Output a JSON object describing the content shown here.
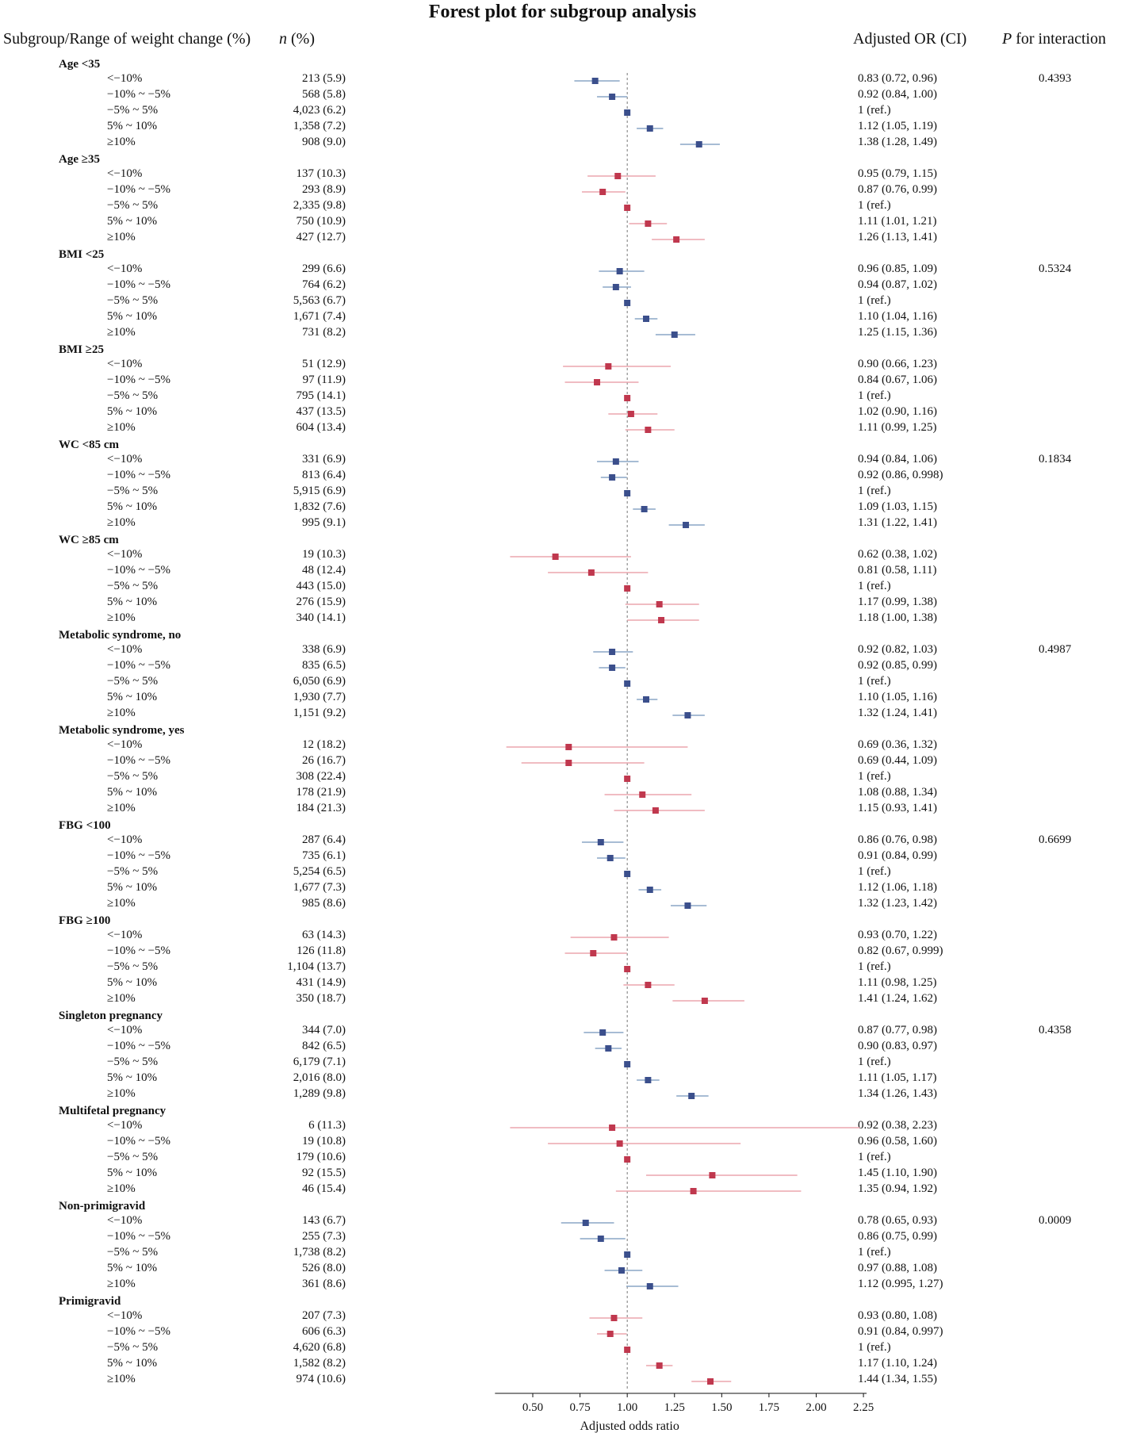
{
  "title": "Forest plot for subgroup analysis",
  "headers": {
    "subgroup": "Subgroup/Range of weight change (%)",
    "n_italic": "n",
    "n_rest": " (%)",
    "or": "Adjusted OR (CI)",
    "p_italic": "P",
    "p_rest": " for interaction"
  },
  "colors": {
    "blue": "#3b4f8c",
    "blue_ci": "#8aa6c6",
    "red": "#c0384e",
    "red_ci": "#eca5ad",
    "ref_line": "#777777"
  },
  "chart_data": {
    "type": "forest",
    "title": "Forest plot for subgroup analysis",
    "xlabel": "Adjusted odds ratio",
    "xlim": [
      0.3,
      2.25
    ],
    "xticks": [
      0.5,
      0.75,
      1.0,
      1.25,
      1.5,
      1.75,
      2.0,
      2.25
    ],
    "xtick_labels": [
      "0.50",
      "0.75",
      "1.00",
      "1.25",
      "1.50",
      "1.75",
      "2.00",
      "2.25"
    ],
    "reference_line": 1.0,
    "groups": [
      {
        "label": "Age <35",
        "color": "blue",
        "p": "0.4393",
        "rows": [
          {
            "range": "<−10%",
            "n": "213 (5.9)",
            "or_text": "0.83 (0.72, 0.96)",
            "or": 0.83,
            "lo": 0.72,
            "hi": 0.96
          },
          {
            "range": "−10% ~ −5%",
            "n": "568 (5.8)",
            "or_text": "0.92 (0.84, 1.00)",
            "or": 0.92,
            "lo": 0.84,
            "hi": 1.0
          },
          {
            "range": "−5% ~ 5%",
            "n": "4,023 (6.2)",
            "or_text": "1 (ref.)",
            "or": 1.0,
            "lo": 1.0,
            "hi": 1.0
          },
          {
            "range": "5% ~ 10%",
            "n": "1,358 (7.2)",
            "or_text": "1.12 (1.05, 1.19)",
            "or": 1.12,
            "lo": 1.05,
            "hi": 1.19
          },
          {
            "range": "≥10%",
            "n": "908 (9.0)",
            "or_text": "1.38 (1.28, 1.49)",
            "or": 1.38,
            "lo": 1.28,
            "hi": 1.49
          }
        ]
      },
      {
        "label": "Age ≥35",
        "color": "red",
        "p": "",
        "rows": [
          {
            "range": "<−10%",
            "n": "137 (10.3)",
            "or_text": "0.95 (0.79, 1.15)",
            "or": 0.95,
            "lo": 0.79,
            "hi": 1.15
          },
          {
            "range": "−10% ~ −5%",
            "n": "293 (8.9)",
            "or_text": "0.87 (0.76, 0.99)",
            "or": 0.87,
            "lo": 0.76,
            "hi": 0.99
          },
          {
            "range": "−5% ~ 5%",
            "n": "2,335 (9.8)",
            "or_text": "1 (ref.)",
            "or": 1.0,
            "lo": 1.0,
            "hi": 1.0
          },
          {
            "range": "5% ~ 10%",
            "n": "750 (10.9)",
            "or_text": "1.11 (1.01, 1.21)",
            "or": 1.11,
            "lo": 1.01,
            "hi": 1.21
          },
          {
            "range": "≥10%",
            "n": "427 (12.7)",
            "or_text": "1.26 (1.13, 1.41)",
            "or": 1.26,
            "lo": 1.13,
            "hi": 1.41
          }
        ]
      },
      {
        "label": "BMI <25",
        "color": "blue",
        "p": "0.5324",
        "rows": [
          {
            "range": "<−10%",
            "n": "299 (6.6)",
            "or_text": "0.96 (0.85, 1.09)",
            "or": 0.96,
            "lo": 0.85,
            "hi": 1.09
          },
          {
            "range": "−10% ~ −5%",
            "n": "764 (6.2)",
            "or_text": "0.94 (0.87, 1.02)",
            "or": 0.94,
            "lo": 0.87,
            "hi": 1.02
          },
          {
            "range": "−5% ~ 5%",
            "n": "5,563 (6.7)",
            "or_text": "1 (ref.)",
            "or": 1.0,
            "lo": 1.0,
            "hi": 1.0
          },
          {
            "range": "5% ~ 10%",
            "n": "1,671 (7.4)",
            "or_text": "1.10 (1.04, 1.16)",
            "or": 1.1,
            "lo": 1.04,
            "hi": 1.16
          },
          {
            "range": "≥10%",
            "n": "731 (8.2)",
            "or_text": "1.25 (1.15, 1.36)",
            "or": 1.25,
            "lo": 1.15,
            "hi": 1.36
          }
        ]
      },
      {
        "label": "BMI ≥25",
        "color": "red",
        "p": "",
        "rows": [
          {
            "range": "<−10%",
            "n": "51 (12.9)",
            "or_text": "0.90 (0.66, 1.23)",
            "or": 0.9,
            "lo": 0.66,
            "hi": 1.23
          },
          {
            "range": "−10% ~ −5%",
            "n": "97 (11.9)",
            "or_text": "0.84 (0.67, 1.06)",
            "or": 0.84,
            "lo": 0.67,
            "hi": 1.06
          },
          {
            "range": "−5% ~ 5%",
            "n": "795 (14.1)",
            "or_text": "1 (ref.)",
            "or": 1.0,
            "lo": 1.0,
            "hi": 1.0
          },
          {
            "range": "5% ~ 10%",
            "n": "437 (13.5)",
            "or_text": "1.02 (0.90, 1.16)",
            "or": 1.02,
            "lo": 0.9,
            "hi": 1.16
          },
          {
            "range": "≥10%",
            "n": "604 (13.4)",
            "or_text": "1.11 (0.99, 1.25)",
            "or": 1.11,
            "lo": 0.99,
            "hi": 1.25
          }
        ]
      },
      {
        "label": "WC <85 cm",
        "color": "blue",
        "p": "0.1834",
        "rows": [
          {
            "range": "<−10%",
            "n": "331 (6.9)",
            "or_text": "0.94 (0.84, 1.06)",
            "or": 0.94,
            "lo": 0.84,
            "hi": 1.06
          },
          {
            "range": "−10% ~ −5%",
            "n": "813 (6.4)",
            "or_text": "0.92 (0.86, 0.998)",
            "or": 0.92,
            "lo": 0.86,
            "hi": 0.998
          },
          {
            "range": "−5% ~ 5%",
            "n": "5,915 (6.9)",
            "or_text": "1 (ref.)",
            "or": 1.0,
            "lo": 1.0,
            "hi": 1.0
          },
          {
            "range": "5% ~ 10%",
            "n": "1,832 (7.6)",
            "or_text": "1.09 (1.03, 1.15)",
            "or": 1.09,
            "lo": 1.03,
            "hi": 1.15
          },
          {
            "range": "≥10%",
            "n": "995 (9.1)",
            "or_text": "1.31 (1.22, 1.41)",
            "or": 1.31,
            "lo": 1.22,
            "hi": 1.41
          }
        ]
      },
      {
        "label": "WC ≥85 cm",
        "color": "red",
        "p": "",
        "rows": [
          {
            "range": "<−10%",
            "n": "19 (10.3)",
            "or_text": "0.62 (0.38, 1.02)",
            "or": 0.62,
            "lo": 0.38,
            "hi": 1.02
          },
          {
            "range": "−10% ~ −5%",
            "n": "48 (12.4)",
            "or_text": "0.81 (0.58, 1.11)",
            "or": 0.81,
            "lo": 0.58,
            "hi": 1.11
          },
          {
            "range": "−5% ~ 5%",
            "n": "443 (15.0)",
            "or_text": "1 (ref.)",
            "or": 1.0,
            "lo": 1.0,
            "hi": 1.0
          },
          {
            "range": "5% ~ 10%",
            "n": "276 (15.9)",
            "or_text": "1.17 (0.99, 1.38)",
            "or": 1.17,
            "lo": 0.99,
            "hi": 1.38
          },
          {
            "range": "≥10%",
            "n": "340 (14.1)",
            "or_text": "1.18 (1.00, 1.38)",
            "or": 1.18,
            "lo": 1.0,
            "hi": 1.38
          }
        ]
      },
      {
        "label": "Metabolic syndrome, no",
        "color": "blue",
        "p": "0.4987",
        "rows": [
          {
            "range": "<−10%",
            "n": "338 (6.9)",
            "or_text": "0.92 (0.82, 1.03)",
            "or": 0.92,
            "lo": 0.82,
            "hi": 1.03
          },
          {
            "range": "−10% ~ −5%",
            "n": "835 (6.5)",
            "or_text": "0.92 (0.85, 0.99)",
            "or": 0.92,
            "lo": 0.85,
            "hi": 0.99
          },
          {
            "range": "−5% ~ 5%",
            "n": "6,050 (6.9)",
            "or_text": "1 (ref.)",
            "or": 1.0,
            "lo": 1.0,
            "hi": 1.0
          },
          {
            "range": "5% ~ 10%",
            "n": "1,930 (7.7)",
            "or_text": "1.10 (1.05, 1.16)",
            "or": 1.1,
            "lo": 1.05,
            "hi": 1.16
          },
          {
            "range": "≥10%",
            "n": "1,151 (9.2)",
            "or_text": "1.32 (1.24, 1.41)",
            "or": 1.32,
            "lo": 1.24,
            "hi": 1.41
          }
        ]
      },
      {
        "label": "Metabolic syndrome, yes",
        "color": "red",
        "p": "",
        "rows": [
          {
            "range": "<−10%",
            "n": "12 (18.2)",
            "or_text": "0.69 (0.36, 1.32)",
            "or": 0.69,
            "lo": 0.36,
            "hi": 1.32
          },
          {
            "range": "−10% ~ −5%",
            "n": "26 (16.7)",
            "or_text": "0.69 (0.44, 1.09)",
            "or": 0.69,
            "lo": 0.44,
            "hi": 1.09
          },
          {
            "range": "−5% ~ 5%",
            "n": "308 (22.4)",
            "or_text": "1 (ref.)",
            "or": 1.0,
            "lo": 1.0,
            "hi": 1.0
          },
          {
            "range": "5% ~ 10%",
            "n": "178 (21.9)",
            "or_text": "1.08 (0.88, 1.34)",
            "or": 1.08,
            "lo": 0.88,
            "hi": 1.34
          },
          {
            "range": "≥10%",
            "n": "184 (21.3)",
            "or_text": "1.15 (0.93, 1.41)",
            "or": 1.15,
            "lo": 0.93,
            "hi": 1.41
          }
        ]
      },
      {
        "label": "FBG <100",
        "color": "blue",
        "p": "0.6699",
        "rows": [
          {
            "range": "<−10%",
            "n": "287 (6.4)",
            "or_text": "0.86 (0.76, 0.98)",
            "or": 0.86,
            "lo": 0.76,
            "hi": 0.98
          },
          {
            "range": "−10% ~ −5%",
            "n": "735 (6.1)",
            "or_text": "0.91 (0.84, 0.99)",
            "or": 0.91,
            "lo": 0.84,
            "hi": 0.99
          },
          {
            "range": "−5% ~ 5%",
            "n": "5,254 (6.5)",
            "or_text": "1 (ref.)",
            "or": 1.0,
            "lo": 1.0,
            "hi": 1.0
          },
          {
            "range": "5% ~ 10%",
            "n": "1,677 (7.3)",
            "or_text": "1.12 (1.06, 1.18)",
            "or": 1.12,
            "lo": 1.06,
            "hi": 1.18
          },
          {
            "range": "≥10%",
            "n": "985 (8.6)",
            "or_text": "1.32 (1.23, 1.42)",
            "or": 1.32,
            "lo": 1.23,
            "hi": 1.42
          }
        ]
      },
      {
        "label": "FBG ≥100",
        "color": "red",
        "p": "",
        "rows": [
          {
            "range": "<−10%",
            "n": "63 (14.3)",
            "or_text": "0.93 (0.70, 1.22)",
            "or": 0.93,
            "lo": 0.7,
            "hi": 1.22
          },
          {
            "range": "−10% ~ −5%",
            "n": "126 (11.8)",
            "or_text": "0.82 (0.67, 0.999)",
            "or": 0.82,
            "lo": 0.67,
            "hi": 0.999
          },
          {
            "range": "−5% ~ 5%",
            "n": "1,104 (13.7)",
            "or_text": "1 (ref.)",
            "or": 1.0,
            "lo": 1.0,
            "hi": 1.0
          },
          {
            "range": "5% ~ 10%",
            "n": "431 (14.9)",
            "or_text": "1.11 (0.98, 1.25)",
            "or": 1.11,
            "lo": 0.98,
            "hi": 1.25
          },
          {
            "range": "≥10%",
            "n": "350 (18.7)",
            "or_text": "1.41 (1.24, 1.62)",
            "or": 1.41,
            "lo": 1.24,
            "hi": 1.62
          }
        ]
      },
      {
        "label": "Singleton pregnancy",
        "color": "blue",
        "p": "0.4358",
        "rows": [
          {
            "range": "<−10%",
            "n": "344 (7.0)",
            "or_text": "0.87 (0.77, 0.98)",
            "or": 0.87,
            "lo": 0.77,
            "hi": 0.98
          },
          {
            "range": "−10% ~ −5%",
            "n": "842 (6.5)",
            "or_text": "0.90 (0.83, 0.97)",
            "or": 0.9,
            "lo": 0.83,
            "hi": 0.97
          },
          {
            "range": "−5% ~ 5%",
            "n": "6,179 (7.1)",
            "or_text": "1 (ref.)",
            "or": 1.0,
            "lo": 1.0,
            "hi": 1.0
          },
          {
            "range": "5% ~ 10%",
            "n": "2,016 (8.0)",
            "or_text": "1.11 (1.05, 1.17)",
            "or": 1.11,
            "lo": 1.05,
            "hi": 1.17
          },
          {
            "range": "≥10%",
            "n": "1,289 (9.8)",
            "or_text": "1.34 (1.26, 1.43)",
            "or": 1.34,
            "lo": 1.26,
            "hi": 1.43
          }
        ]
      },
      {
        "label": "Multifetal pregnancy",
        "color": "red",
        "p": "",
        "rows": [
          {
            "range": "<−10%",
            "n": "6 (11.3)",
            "or_text": "0.92 (0.38, 2.23)",
            "or": 0.92,
            "lo": 0.38,
            "hi": 2.23
          },
          {
            "range": "−10% ~ −5%",
            "n": "19 (10.8)",
            "or_text": "0.96 (0.58, 1.60)",
            "or": 0.96,
            "lo": 0.58,
            "hi": 1.6
          },
          {
            "range": "−5% ~ 5%",
            "n": "179 (10.6)",
            "or_text": "1 (ref.)",
            "or": 1.0,
            "lo": 1.0,
            "hi": 1.0
          },
          {
            "range": "5% ~ 10%",
            "n": "92 (15.5)",
            "or_text": "1.45 (1.10, 1.90)",
            "or": 1.45,
            "lo": 1.1,
            "hi": 1.9
          },
          {
            "range": "≥10%",
            "n": "46 (15.4)",
            "or_text": "1.35 (0.94, 1.92)",
            "or": 1.35,
            "lo": 0.94,
            "hi": 1.92
          }
        ]
      },
      {
        "label": "Non-primigravid",
        "color": "blue",
        "p": "0.0009",
        "rows": [
          {
            "range": "<−10%",
            "n": "143 (6.7)",
            "or_text": "0.78 (0.65, 0.93)",
            "or": 0.78,
            "lo": 0.65,
            "hi": 0.93
          },
          {
            "range": "−10% ~ −5%",
            "n": "255 (7.3)",
            "or_text": "0.86 (0.75, 0.99)",
            "or": 0.86,
            "lo": 0.75,
            "hi": 0.99
          },
          {
            "range": "−5% ~ 5%",
            "n": "1,738 (8.2)",
            "or_text": "1 (ref.)",
            "or": 1.0,
            "lo": 1.0,
            "hi": 1.0
          },
          {
            "range": "5% ~ 10%",
            "n": "526 (8.0)",
            "or_text": "0.97 (0.88, 1.08)",
            "or": 0.97,
            "lo": 0.88,
            "hi": 1.08
          },
          {
            "range": "≥10%",
            "n": "361 (8.6)",
            "or_text": "1.12 (0.995, 1.27)",
            "or": 1.12,
            "lo": 0.995,
            "hi": 1.27
          }
        ]
      },
      {
        "label": "Primigravid",
        "color": "red",
        "p": "",
        "rows": [
          {
            "range": "<−10%",
            "n": "207 (7.3)",
            "or_text": "0.93 (0.80, 1.08)",
            "or": 0.93,
            "lo": 0.8,
            "hi": 1.08
          },
          {
            "range": "−10% ~ −5%",
            "n": "606 (6.3)",
            "or_text": "0.91 (0.84, 0.997)",
            "or": 0.91,
            "lo": 0.84,
            "hi": 0.997
          },
          {
            "range": "−5% ~ 5%",
            "n": "4,620 (6.8)",
            "or_text": "1 (ref.)",
            "or": 1.0,
            "lo": 1.0,
            "hi": 1.0
          },
          {
            "range": "5% ~ 10%",
            "n": "1,582 (8.2)",
            "or_text": "1.17 (1.10, 1.24)",
            "or": 1.17,
            "lo": 1.1,
            "hi": 1.24
          },
          {
            "range": "≥10%",
            "n": "974 (10.6)",
            "or_text": "1.44 (1.34, 1.55)",
            "or": 1.44,
            "lo": 1.34,
            "hi": 1.55
          }
        ]
      }
    ]
  }
}
